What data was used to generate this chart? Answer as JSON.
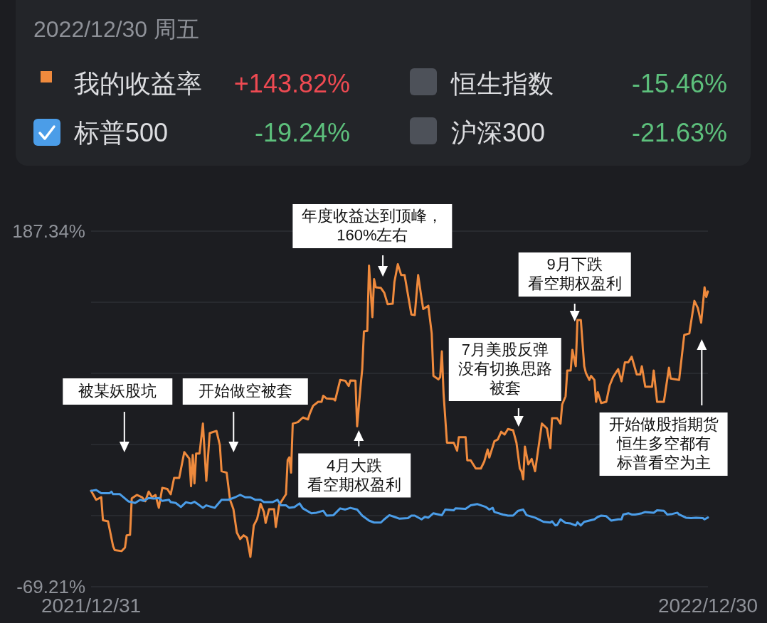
{
  "chart_data": {
    "type": "line",
    "legend": "top",
    "legend_title": "2022/12/30 周五",
    "grid": "y",
    "xlim": [
      "2021-12-31",
      "2022-12-30"
    ],
    "xticks": [
      {
        "value": "2021-12-31",
        "label": "2021/12/31"
      },
      {
        "value": "2022-12-30",
        "label": "2022/12/30"
      }
    ],
    "ylim": [
      -69.21,
      187.34
    ],
    "yticks": [
      {
        "value": 187.34,
        "label": "187.34%"
      },
      {
        "value": 136.03,
        "label": null
      },
      {
        "value": 84.72,
        "label": null
      },
      {
        "value": 33.41,
        "label": null
      },
      {
        "value": -17.9,
        "label": null
      },
      {
        "value": -69.21,
        "label": "-69.21%"
      }
    ],
    "series": [
      {
        "name": "我的收益率",
        "color": "#ef8a3d",
        "x": [
          "2021-12-31",
          "2022-01-03",
          "2022-01-06",
          "2022-01-07",
          "2022-01-10",
          "2022-01-13",
          "2022-01-14",
          "2022-01-18",
          "2022-01-20",
          "2022-01-21",
          "2022-01-23",
          "2022-01-24",
          "2022-01-27",
          "2022-01-30",
          "2022-02-01",
          "2022-02-03",
          "2022-02-05",
          "2022-02-07",
          "2022-02-09",
          "2022-02-11",
          "2022-02-14",
          "2022-02-16",
          "2022-02-18",
          "2022-02-21",
          "2022-02-24",
          "2022-02-27",
          "2022-02-28",
          "2022-03-01",
          "2022-03-02",
          "2022-03-03",
          "2022-03-05",
          "2022-03-07",
          "2022-03-09",
          "2022-03-11",
          "2022-03-15",
          "2022-03-17",
          "2022-03-18",
          "2022-03-21",
          "2022-03-23",
          "2022-03-25",
          "2022-03-27",
          "2022-03-29",
          "2022-03-31",
          "2022-04-02",
          "2022-04-04",
          "2022-04-06",
          "2022-04-08",
          "2022-04-10",
          "2022-04-12",
          "2022-04-13",
          "2022-04-15",
          "2022-04-18",
          "2022-04-19",
          "2022-04-21",
          "2022-04-25",
          "2022-04-26",
          "2022-04-27",
          "2022-04-28",
          "2022-04-29",
          "2022-05-02",
          "2022-05-05",
          "2022-05-08",
          "2022-05-09",
          "2022-05-11",
          "2022-05-14",
          "2022-05-16",
          "2022-05-17",
          "2022-05-19",
          "2022-05-23",
          "2022-05-24",
          "2022-05-27",
          "2022-05-30",
          "2022-06-01",
          "2022-06-02",
          "2022-06-05",
          "2022-06-06",
          "2022-06-08",
          "2022-06-09",
          "2022-06-10",
          "2022-06-12",
          "2022-06-13",
          "2022-06-15",
          "2022-06-16",
          "2022-06-17",
          "2022-06-20",
          "2022-06-22",
          "2022-06-24",
          "2022-06-27",
          "2022-06-28",
          "2022-06-30",
          "2022-07-02",
          "2022-07-04",
          "2022-07-08",
          "2022-07-10",
          "2022-07-12",
          "2022-07-14",
          "2022-07-15",
          "2022-07-18",
          "2022-07-20",
          "2022-07-21",
          "2022-07-24",
          "2022-07-25",
          "2022-07-26",
          "2022-07-27",
          "2022-07-29",
          "2022-08-02",
          "2022-08-04",
          "2022-08-05",
          "2022-08-09",
          "2022-08-10",
          "2022-08-12",
          "2022-08-15",
          "2022-08-18",
          "2022-08-20",
          "2022-08-22",
          "2022-08-23",
          "2022-08-26",
          "2022-08-28",
          "2022-08-30",
          "2022-09-01",
          "2022-09-03",
          "2022-09-06",
          "2022-09-08",
          "2022-09-10",
          "2022-09-11",
          "2022-09-12",
          "2022-09-13",
          "2022-09-15",
          "2022-09-17",
          "2022-09-19",
          "2022-09-23",
          "2022-09-26",
          "2022-09-28",
          "2022-09-29",
          "2022-10-02",
          "2022-10-04",
          "2022-10-05",
          "2022-10-07",
          "2022-10-08",
          "2022-10-10",
          "2022-10-11",
          "2022-10-13",
          "2022-10-14",
          "2022-10-16",
          "2022-10-18",
          "2022-10-19",
          "2022-10-21",
          "2022-10-22",
          "2022-10-24",
          "2022-10-25",
          "2022-10-26",
          "2022-10-28",
          "2022-10-31",
          "2022-11-02",
          "2022-11-04",
          "2022-11-07",
          "2022-11-09",
          "2022-11-11",
          "2022-11-13",
          "2022-11-15",
          "2022-11-18",
          "2022-11-20",
          "2022-11-21",
          "2022-11-23",
          "2022-11-27",
          "2022-11-28",
          "2022-11-30",
          "2022-12-04",
          "2022-12-07",
          "2022-12-08",
          "2022-12-13",
          "2022-12-16",
          "2022-12-19",
          "2022-12-22",
          "2022-12-24",
          "2022-12-26",
          "2022-12-28",
          "2022-12-29",
          "2022-12-30"
        ],
        "values": [
          0,
          -6.5,
          -4.6,
          -21.2,
          -22.0,
          -40.0,
          -42.8,
          -43.5,
          -41.0,
          -32.1,
          -31.8,
          -5.5,
          -3.0,
          -4.6,
          -7.5,
          -0.6,
          -4.6,
          -3.0,
          -12.3,
          2.1,
          1.3,
          -2.5,
          9.3,
          9.3,
          27.9,
          23.2,
          3.3,
          25.9,
          5.3,
          26.9,
          26.9,
          48.5,
          7.2,
          41.6,
          43.2,
          32.9,
          14.1,
          13.1,
          -6.5,
          -13.3,
          -30.1,
          -34.8,
          -32.1,
          -33.8,
          -47.7,
          -25.1,
          -20.3,
          -9.4,
          -15.3,
          -23.2,
          -13.3,
          -13.3,
          -26.1,
          -10.2,
          -2.5,
          22.1,
          24.2,
          13.1,
          48.5,
          49.5,
          52.9,
          51.5,
          55.5,
          61.3,
          64.2,
          64.2,
          68.6,
          66.6,
          66.3,
          65.2,
          80.0,
          79.4,
          75.6,
          79.6,
          79.4,
          46.5,
          75.1,
          87.8,
          115.0,
          115.4,
          162.5,
          125.3,
          152.7,
          146.8,
          146.4,
          142.9,
          134.6,
          135.0,
          150.7,
          163.5,
          155.6,
          155.6,
          127.2,
          126.8,
          155.6,
          138.9,
          131.1,
          133.5,
          113.5,
          82.9,
          80.4,
          82.0,
          100.6,
          70.2,
          34.7,
          34.7,
          28.9,
          38.7,
          38.7,
          22.0,
          22.0,
          16.1,
          16.1,
          21.1,
          29.8,
          24.0,
          35.8,
          37.1,
          42.6,
          40.6,
          44.6,
          43.7,
          34.7,
          16.1,
          14.1,
          8.3,
          31.9,
          19.0,
          23.0,
          14.1,
          48.5,
          45.0,
          30.8,
          52.4,
          52.4,
          48.5,
          62.3,
          68.2,
          86.8,
          86.8,
          101.7,
          89.9,
          123.2,
          123.2,
          89.9,
          84.9,
          80.0,
          82.9,
          80.0,
          64.2,
          71.1,
          63.3,
          64.2,
          76.0,
          82.0,
          87.8,
          79.0,
          92.7,
          92.7,
          96.7,
          83.9,
          83.9,
          89.9,
          75.1,
          75.1,
          86.8,
          64.2,
          64.2,
          88.8,
          81.0,
          80.0,
          112.4,
          113.5,
          137.0,
          132.0,
          121.3,
          146.8,
          139.9,
          143.82
        ]
      },
      {
        "name": "标普500",
        "color": "#4b9de8",
        "x": [
          "2021-12-31",
          "2022-01-03",
          "2022-01-06",
          "2022-01-11",
          "2022-01-12",
          "2022-01-13",
          "2022-01-17",
          "2022-01-22",
          "2022-01-26",
          "2022-01-29",
          "2022-01-31",
          "2022-02-03",
          "2022-02-06",
          "2022-02-09",
          "2022-02-11",
          "2022-02-15",
          "2022-02-16",
          "2022-02-19",
          "2022-02-22",
          "2022-02-25",
          "2022-02-28",
          "2022-03-02",
          "2022-03-04",
          "2022-03-07",
          "2022-03-09",
          "2022-03-14",
          "2022-03-18",
          "2022-03-22",
          "2022-03-26",
          "2022-03-29",
          "2022-04-01",
          "2022-04-04",
          "2022-04-07",
          "2022-04-10",
          "2022-04-12",
          "2022-04-17",
          "2022-04-20",
          "2022-04-22",
          "2022-04-25",
          "2022-04-27",
          "2022-04-30",
          "2022-05-03",
          "2022-05-05",
          "2022-05-10",
          "2022-05-13",
          "2022-05-17",
          "2022-05-19",
          "2022-05-23",
          "2022-05-27",
          "2022-05-30",
          "2022-06-02",
          "2022-06-06",
          "2022-06-09",
          "2022-06-13",
          "2022-06-16",
          "2022-06-20",
          "2022-06-22",
          "2022-06-25",
          "2022-06-28",
          "2022-07-01",
          "2022-07-06",
          "2022-07-08",
          "2022-07-10",
          "2022-07-14",
          "2022-07-16",
          "2022-07-18",
          "2022-07-21",
          "2022-07-26",
          "2022-07-28",
          "2022-08-02",
          "2022-08-03",
          "2022-08-09",
          "2022-08-12",
          "2022-08-16",
          "2022-08-21",
          "2022-08-23",
          "2022-08-25",
          "2022-08-26",
          "2022-08-31",
          "2022-09-03",
          "2022-09-06",
          "2022-09-09",
          "2022-09-12",
          "2022-09-14",
          "2022-09-19",
          "2022-09-24",
          "2022-09-28",
          "2022-09-29",
          "2022-10-01",
          "2022-10-02",
          "2022-10-04",
          "2022-10-07",
          "2022-10-10",
          "2022-10-13",
          "2022-10-14",
          "2022-10-16",
          "2022-10-18",
          "2022-10-21",
          "2022-10-24",
          "2022-10-26",
          "2022-10-28",
          "2022-10-31",
          "2022-11-03",
          "2022-11-07",
          "2022-11-09",
          "2022-11-10",
          "2022-11-13",
          "2022-11-15",
          "2022-11-17",
          "2022-11-21",
          "2022-11-23",
          "2022-11-28",
          "2022-11-30",
          "2022-12-04",
          "2022-12-06",
          "2022-12-09",
          "2022-12-12",
          "2022-12-13",
          "2022-12-17",
          "2022-12-20",
          "2022-12-23",
          "2022-12-27",
          "2022-12-28",
          "2022-12-30"
        ],
        "values": [
          0,
          0.6,
          -1.7,
          -1.7,
          -0.6,
          -2.4,
          -2.4,
          -7.6,
          -8.8,
          -6.5,
          -7.3,
          -5.2,
          -5.6,
          -5.2,
          -7.3,
          -6.5,
          -8.2,
          -8.8,
          -11.7,
          -8.2,
          -9.1,
          -7.9,
          -9.6,
          -12.3,
          -10.5,
          -12.3,
          -6.5,
          -6.5,
          -4.7,
          -2.9,
          -4.7,
          -4.7,
          -6.5,
          -6.5,
          -8.2,
          -8.2,
          -6.5,
          -10.5,
          -10.5,
          -12.3,
          -11.7,
          -9.1,
          -12.7,
          -16.2,
          -15.8,
          -14.4,
          -17.9,
          -17.6,
          -12.7,
          -13.5,
          -12.3,
          -13.5,
          -17.9,
          -21.5,
          -22.9,
          -22.9,
          -20.6,
          -17.6,
          -18.8,
          -20.1,
          -19.7,
          -17.9,
          -17.9,
          -20.6,
          -18.8,
          -19.4,
          -16.2,
          -17.6,
          -13.5,
          -14.1,
          -12.7,
          -13.0,
          -10.5,
          -9.6,
          -11.7,
          -13.5,
          -12.3,
          -15.3,
          -17.1,
          -17.9,
          -17.9,
          -14.4,
          -13.5,
          -17.6,
          -19.4,
          -22.4,
          -22.9,
          -22.0,
          -25.0,
          -24.7,
          -20.6,
          -23.2,
          -23.6,
          -25.0,
          -22.7,
          -25.0,
          -22.4,
          -21.5,
          -20.6,
          -18.8,
          -17.9,
          -18.3,
          -21.5,
          -20.6,
          -20.6,
          -17.1,
          -16.2,
          -17.1,
          -17.1,
          -16.2,
          -15.3,
          -15.8,
          -14.1,
          -14.4,
          -17.1,
          -16.7,
          -15.8,
          -17.1,
          -19.4,
          -19.7,
          -19.4,
          -19.7,
          -20.6,
          -19.24
        ]
      }
    ],
    "annotations": [
      "+143.82%",
      "-19.24%",
      "恒生指数",
      "-15.46%",
      "沪深300",
      "-21.63%",
      "被某妖股坑",
      "开始做空被套",
      "年度收益达到顶峰，160%左右",
      "4月大跌看空期权盈利",
      "7月美股反弹没有切换思路被套",
      "9月下跌看空期权盈利",
      "开始做股指期货恒生多空都有标普看空为主"
    ]
  }
}
